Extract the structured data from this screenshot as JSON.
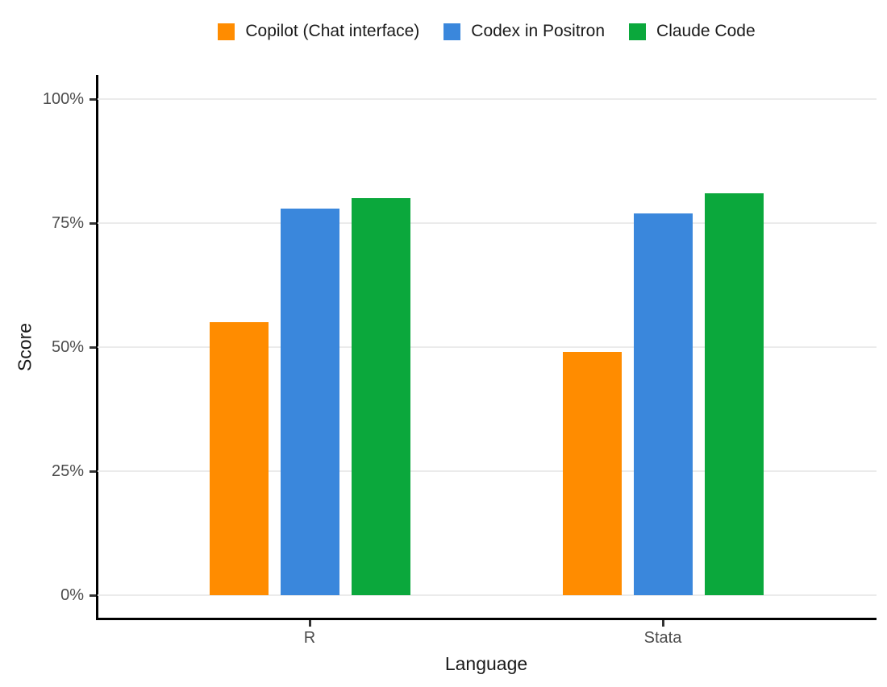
{
  "chart_data": {
    "type": "bar",
    "categories": [
      "R",
      "Stata"
    ],
    "series": [
      {
        "name": "Copilot (Chat interface)",
        "color": "#FF8C00",
        "values": [
          55,
          49
        ]
      },
      {
        "name": "Codex in Positron",
        "color": "#3A87DC",
        "values": [
          78,
          77
        ]
      },
      {
        "name": "Claude Code",
        "color": "#0BA83C",
        "values": [
          80,
          81
        ]
      }
    ],
    "title": "",
    "xlabel": "Language",
    "ylabel": "Score",
    "ylim": [
      0,
      100
    ],
    "yticks": [
      0,
      25,
      50,
      75,
      100
    ],
    "ytick_labels": [
      "0%",
      "25%",
      "50%",
      "75%",
      "100%"
    ],
    "value_format": "percent",
    "grid": true,
    "legend_position": "top"
  },
  "style": {
    "background": "#FFFFFF",
    "grid_color": "#EBEBEB",
    "axis_color": "#000000",
    "tick_color": "#333333",
    "tick_label_color": "#4D4D4D",
    "axis_title_color": "#1A1A1A",
    "legend_text_color": "#1A1A1A"
  }
}
